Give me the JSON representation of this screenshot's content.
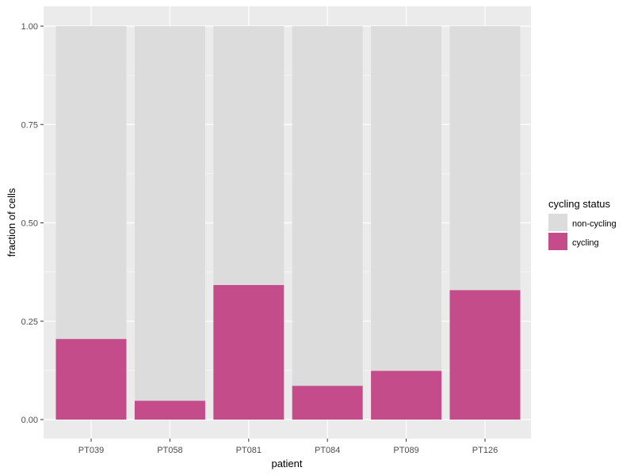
{
  "chart_data": {
    "type": "bar",
    "stacked": true,
    "xlabel": "patient",
    "ylabel": "fraction of cells",
    "ylim": [
      0,
      1
    ],
    "yticks": [
      "0.00",
      "0.25",
      "0.50",
      "0.75",
      "1.00"
    ],
    "grid": true,
    "legend_position": "right",
    "categories": [
      "PT039",
      "PT058",
      "PT081",
      "PT084",
      "PT089",
      "PT126"
    ],
    "series": [
      {
        "name": "non-cycling",
        "color": "#dcdcdc",
        "values": [
          0.795,
          0.952,
          0.658,
          0.914,
          0.876,
          0.671
        ]
      },
      {
        "name": "cycling",
        "color": "#c44c8b",
        "values": [
          0.205,
          0.048,
          0.342,
          0.086,
          0.124,
          0.329
        ]
      }
    ],
    "legend": {
      "title": "cycling status",
      "entries": [
        "non-cycling",
        "cycling"
      ]
    }
  },
  "colors": {
    "panel_background": "#ebebeb",
    "grid_line": "#ffffff",
    "cycling": "#c44c8b",
    "non_cycling": "#dcdcdc"
  }
}
